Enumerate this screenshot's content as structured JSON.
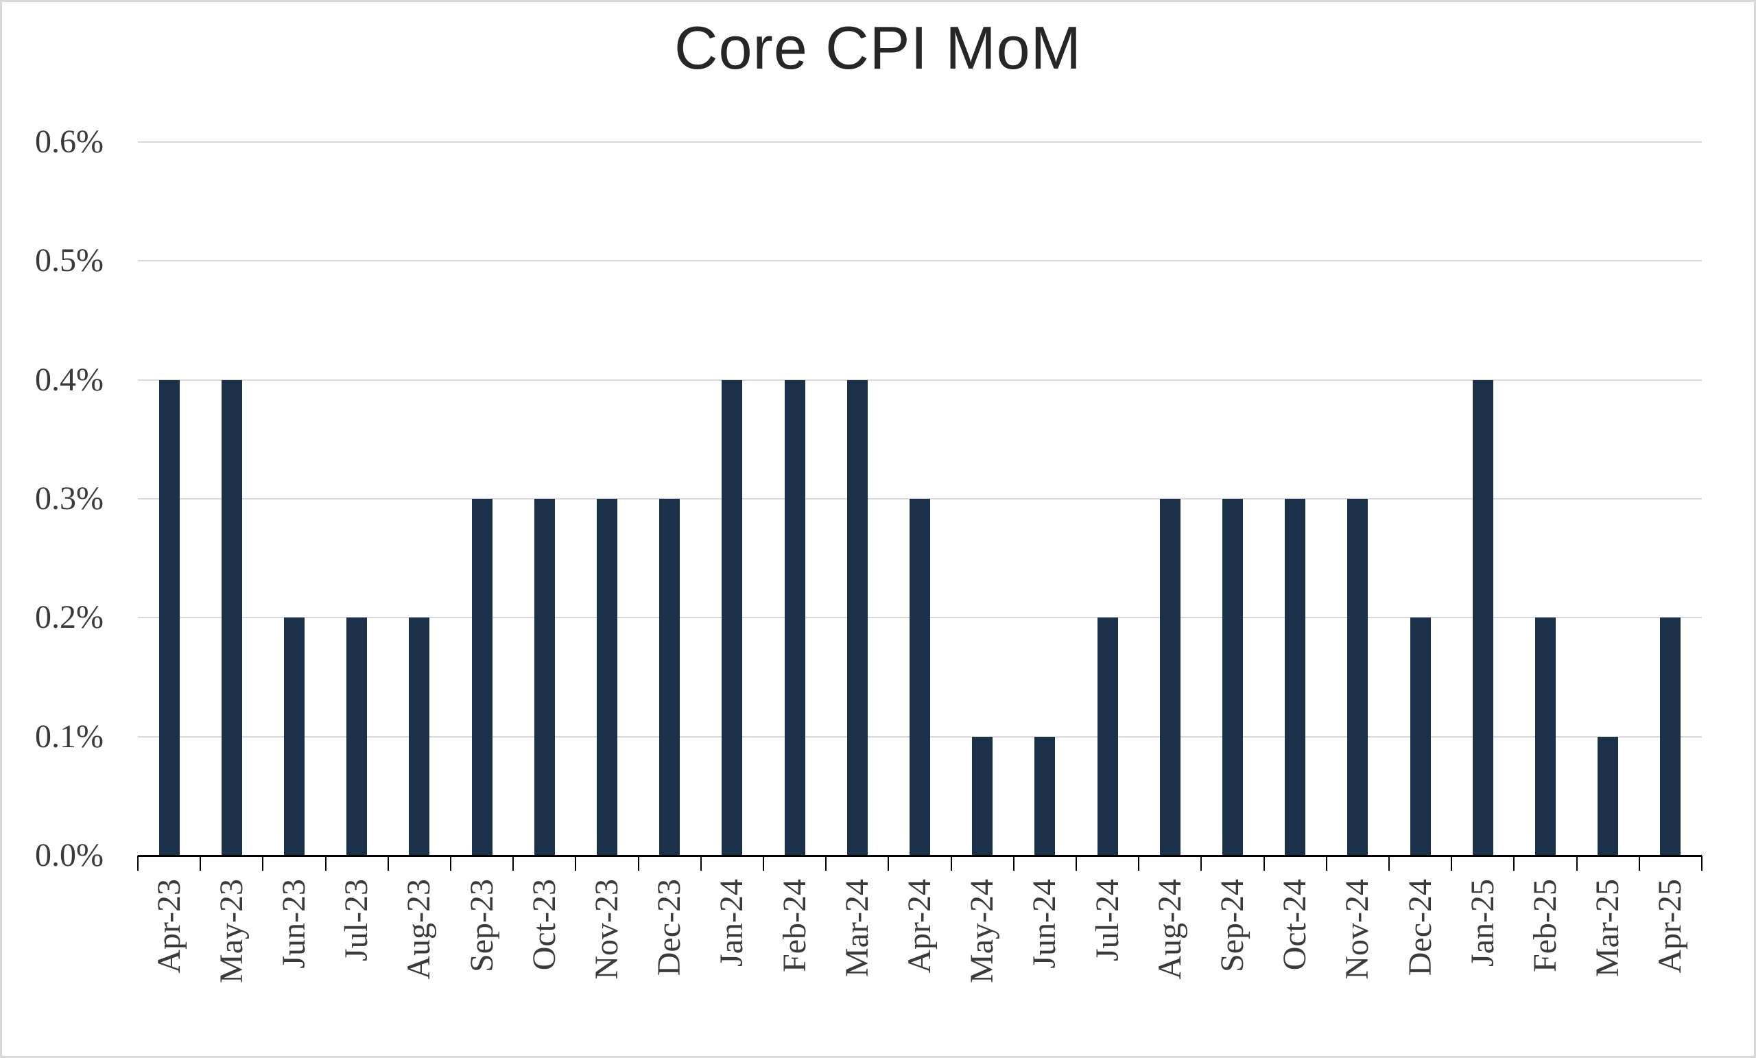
{
  "chart_data": {
    "type": "bar",
    "title": "Core CPI MoM",
    "categories": [
      "Apr-23",
      "May-23",
      "Jun-23",
      "Jul-23",
      "Aug-23",
      "Sep-23",
      "Oct-23",
      "Nov-23",
      "Dec-23",
      "Jan-24",
      "Feb-24",
      "Mar-24",
      "Apr-24",
      "May-24",
      "Jun-24",
      "Jul-24",
      "Aug-24",
      "Sep-24",
      "Oct-24",
      "Nov-24",
      "Dec-24",
      "Jan-25",
      "Feb-25",
      "Mar-25",
      "Apr-25"
    ],
    "values": [
      0.4,
      0.4,
      0.2,
      0.2,
      0.2,
      0.3,
      0.3,
      0.3,
      0.3,
      0.4,
      0.4,
      0.4,
      0.3,
      0.1,
      0.1,
      0.2,
      0.3,
      0.3,
      0.3,
      0.3,
      0.2,
      0.4,
      0.2,
      0.1,
      0.2
    ],
    "value_unit": "%",
    "ytick_labels": [
      "0.0%",
      "0.1%",
      "0.2%",
      "0.3%",
      "0.4%",
      "0.5%",
      "0.6%"
    ],
    "ytick_values": [
      0.0,
      0.1,
      0.2,
      0.3,
      0.4,
      0.5,
      0.6
    ],
    "ylim": [
      0.0,
      0.6
    ],
    "grid": "horizontal",
    "legend_position": "none",
    "xlabel": "",
    "ylabel": ""
  },
  "colors": {
    "bar": "#1b3149",
    "gridline": "#d9d9d9",
    "axis": "#000000",
    "tick_label": "#3a3a3a",
    "title": "#262626",
    "canvas_border": "#d9d9d9",
    "background": "#ffffff"
  }
}
